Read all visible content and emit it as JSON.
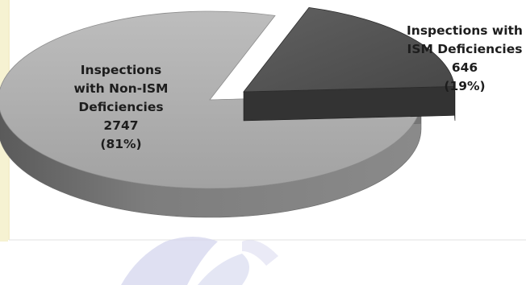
{
  "chart_data": {
    "type": "pie",
    "style": "3d-exploded",
    "slices": [
      {
        "label_lines": [
          "Inspections",
          "with Non-ISM",
          "Deficiencies",
          "2747",
          "(81%)"
        ],
        "value": 2747,
        "percent": 81,
        "color": "#a8a8a8"
      },
      {
        "label_lines": [
          "Inspections with",
          "ISM Deficiencies",
          "646",
          "(19%)"
        ],
        "value": 646,
        "percent": 19,
        "color": "#505050"
      }
    ],
    "legend": "none"
  },
  "colors": {
    "background": "#ffffff",
    "watermark": "#c9cbe6",
    "page_edge": "#f4f0cc"
  }
}
